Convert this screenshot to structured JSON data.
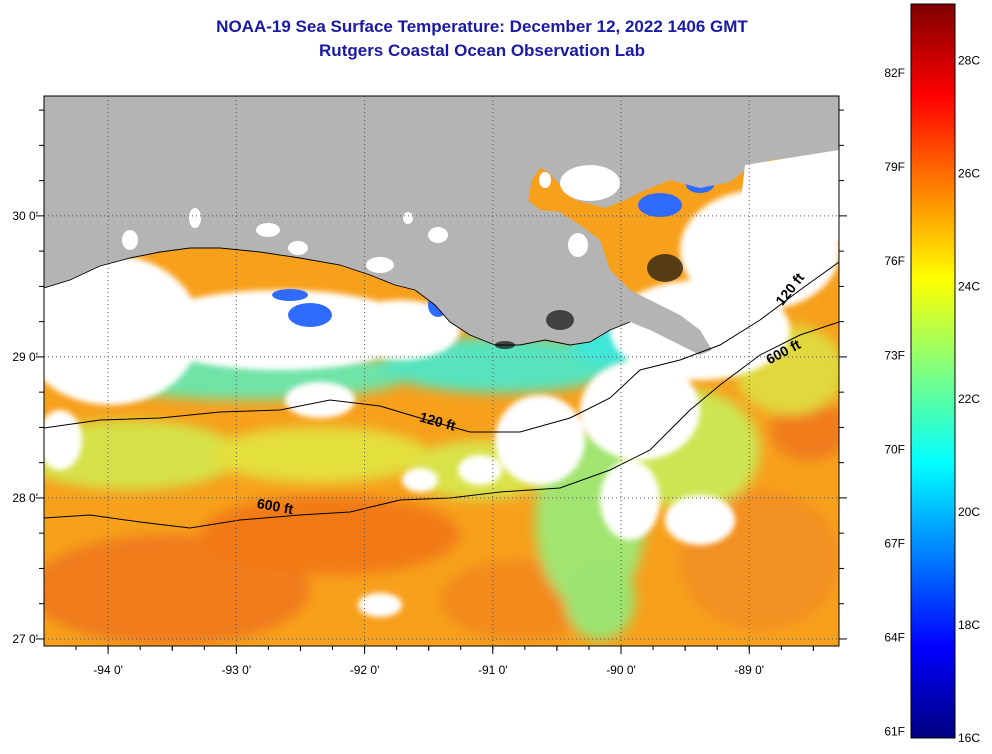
{
  "header": {
    "title": "NOAA-19 Sea Surface Temperature:  December 12, 2022 1406 GMT",
    "subtitle": "Rutgers Coastal Ocean Observation Lab"
  },
  "map": {
    "lon_range": [
      -94.5,
      -88.3
    ],
    "lat_range": [
      26.95,
      30.85
    ],
    "lon_ticks": [
      {
        "value": -94,
        "label": "-94 0'"
      },
      {
        "value": -93,
        "label": "-93 0'"
      },
      {
        "value": -92,
        "label": "-92 0'"
      },
      {
        "value": -91,
        "label": "-91 0'"
      },
      {
        "value": -90,
        "label": "-90 0'"
      },
      {
        "value": -89,
        "label": "-89 0'"
      }
    ],
    "lat_ticks": [
      {
        "value": 30,
        "label": "30 0'"
      },
      {
        "value": 29,
        "label": "29 0'"
      },
      {
        "value": 28,
        "label": "28 0'"
      },
      {
        "value": 27,
        "label": "27 0'"
      }
    ],
    "contours": [
      {
        "label": "120 ft"
      },
      {
        "label": "600 ft"
      },
      {
        "label": "120 ft"
      },
      {
        "label": "600 ft"
      }
    ],
    "colors": {
      "land": "#b4b4b4",
      "cloud": "#ffffff",
      "frame": "#000000"
    }
  },
  "colorbar": {
    "fahrenheit_labels": [
      "82F",
      "79F",
      "76F",
      "73F",
      "70F",
      "67F",
      "64F",
      "61F"
    ],
    "celsius_labels": [
      "28C",
      "26C",
      "24C",
      "22C",
      "20C",
      "18C",
      "16C"
    ],
    "range_c": [
      16,
      29
    ],
    "colors": [
      "#00007f",
      "#0000ff",
      "#007fff",
      "#00ffff",
      "#7fff7f",
      "#ffff00",
      "#ff7f00",
      "#ff0000",
      "#7f0000"
    ]
  }
}
